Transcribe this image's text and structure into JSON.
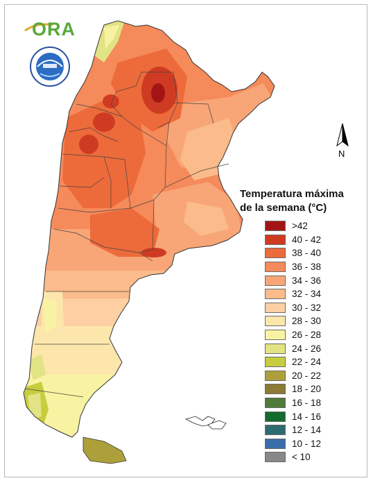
{
  "logo": {
    "ora_text": "ORA",
    "smn_emblem": "smn-emblem"
  },
  "north_arrow": {
    "label": "N"
  },
  "legend": {
    "title_line1": "Temperatura máxima",
    "title_line2": "de la semana (°C)",
    "items": [
      {
        "label": ">42",
        "color": "#a31515"
      },
      {
        "label": "40 - 42",
        "color": "#cf3b22"
      },
      {
        "label": "38 - 40",
        "color": "#ed6a3a"
      },
      {
        "label": "36 - 38",
        "color": "#f58a5a"
      },
      {
        "label": "34 - 36",
        "color": "#f8a577"
      },
      {
        "label": "32 - 34",
        "color": "#fbbb8a"
      },
      {
        "label": "30 - 32",
        "color": "#fdcfa2"
      },
      {
        "label": "28 - 30",
        "color": "#fde6ac"
      },
      {
        "label": "26 - 28",
        "color": "#f8f3a2"
      },
      {
        "label": "24 - 26",
        "color": "#e2e384"
      },
      {
        "label": "22 - 24",
        "color": "#c6cd3e"
      },
      {
        "label": "20 - 22",
        "color": "#ada03a"
      },
      {
        "label": "18 - 20",
        "color": "#8c7a35"
      },
      {
        "label": "16 - 18",
        "color": "#4e7a3a"
      },
      {
        "label": "14 - 16",
        "color": "#146b2f"
      },
      {
        "label": "12 - 14",
        "color": "#2e6b70"
      },
      {
        "label": "10 - 12",
        "color": "#3a6eaa"
      },
      {
        "label": "< 10",
        "color": "#888888"
      }
    ]
  }
}
